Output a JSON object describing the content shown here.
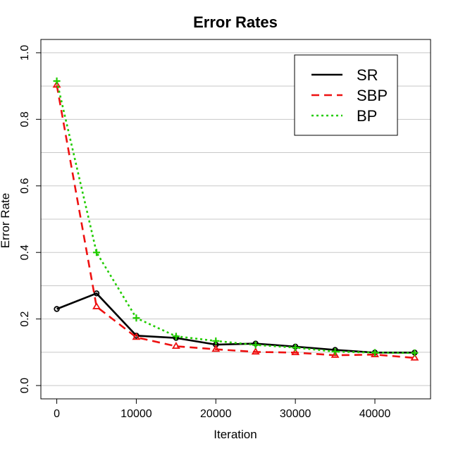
{
  "chart_data": {
    "type": "line",
    "title": "Error Rates",
    "xlabel": "Iteration",
    "ylabel": "Error Rate",
    "xlim": [
      -2000,
      47000
    ],
    "ylim": [
      -0.04,
      1.04
    ],
    "x_ticks": [
      0,
      10000,
      20000,
      30000,
      40000
    ],
    "y_ticks": [
      0.0,
      0.2,
      0.4,
      0.6,
      0.8,
      1.0
    ],
    "y_tick_labels": [
      "0.0",
      "0.2",
      "0.4",
      "0.6",
      "0.8",
      "1.0"
    ],
    "gridlines_y": [
      0.0,
      0.1,
      0.2,
      0.3,
      0.4,
      0.5,
      0.6,
      0.7,
      0.8,
      0.9,
      1.0
    ],
    "grid": true,
    "legend_position": "top-right",
    "x": [
      0,
      5000,
      10000,
      15000,
      20000,
      25000,
      30000,
      35000,
      40000,
      45000
    ],
    "series": [
      {
        "name": "SR",
        "color": "#000000",
        "dash": "solid",
        "marker": "circle",
        "values": [
          0.23,
          0.277,
          0.15,
          0.143,
          0.123,
          0.126,
          0.117,
          0.107,
          0.099,
          0.099
        ]
      },
      {
        "name": "SBP",
        "color": "#ee1111",
        "dash": "dashed",
        "marker": "triangle",
        "values": [
          0.903,
          0.237,
          0.145,
          0.118,
          0.109,
          0.101,
          0.099,
          0.091,
          0.093,
          0.083
        ]
      },
      {
        "name": "BP",
        "color": "#22cc00",
        "dash": "dotted",
        "marker": "plus",
        "values": [
          0.915,
          0.4,
          0.203,
          0.148,
          0.134,
          0.122,
          0.114,
          0.102,
          0.099,
          0.098
        ]
      }
    ]
  }
}
